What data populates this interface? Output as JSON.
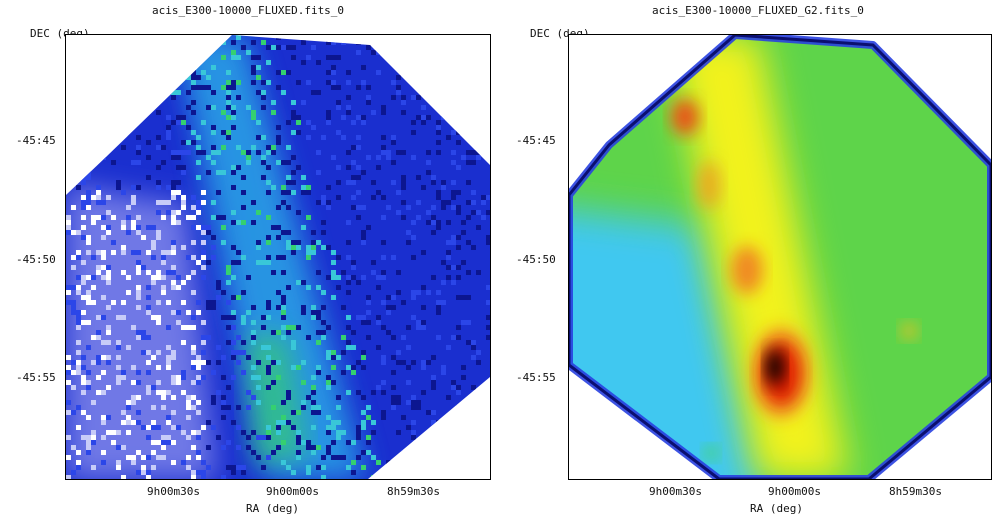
{
  "panels": [
    {
      "title": "acis_E300-10000_FLUXED.fits_0",
      "ylabel": "DEC (deg)",
      "xlabel": "RA (deg)",
      "yticks": [
        "-45:45",
        "-45:50",
        "-45:55"
      ],
      "xticks": [
        "9h00m30s",
        "9h00m00s",
        "8h59m30s"
      ],
      "colormap": "blue-white-cyan-green (binned counts)"
    },
    {
      "title": "acis_E300-10000_FLUXED_G2.fits_0",
      "ylabel": "DEC (deg)",
      "xlabel": "RA (deg)",
      "yticks": [
        "-45:45",
        "-45:50",
        "-45:55"
      ],
      "xticks": [
        "9h00m30s",
        "9h00m00s",
        "8h59m30s"
      ],
      "colormap": "rainbow smoothed (blue-cyan-green-yellow-red-black)"
    }
  ],
  "colors": {
    "frame": "#000000",
    "blue_dark": "#1420c8",
    "cyan": "#33c6f0",
    "green": "#3cd23a",
    "yellow": "#f0f000",
    "red": "#e01e00",
    "core": "#000000"
  }
}
